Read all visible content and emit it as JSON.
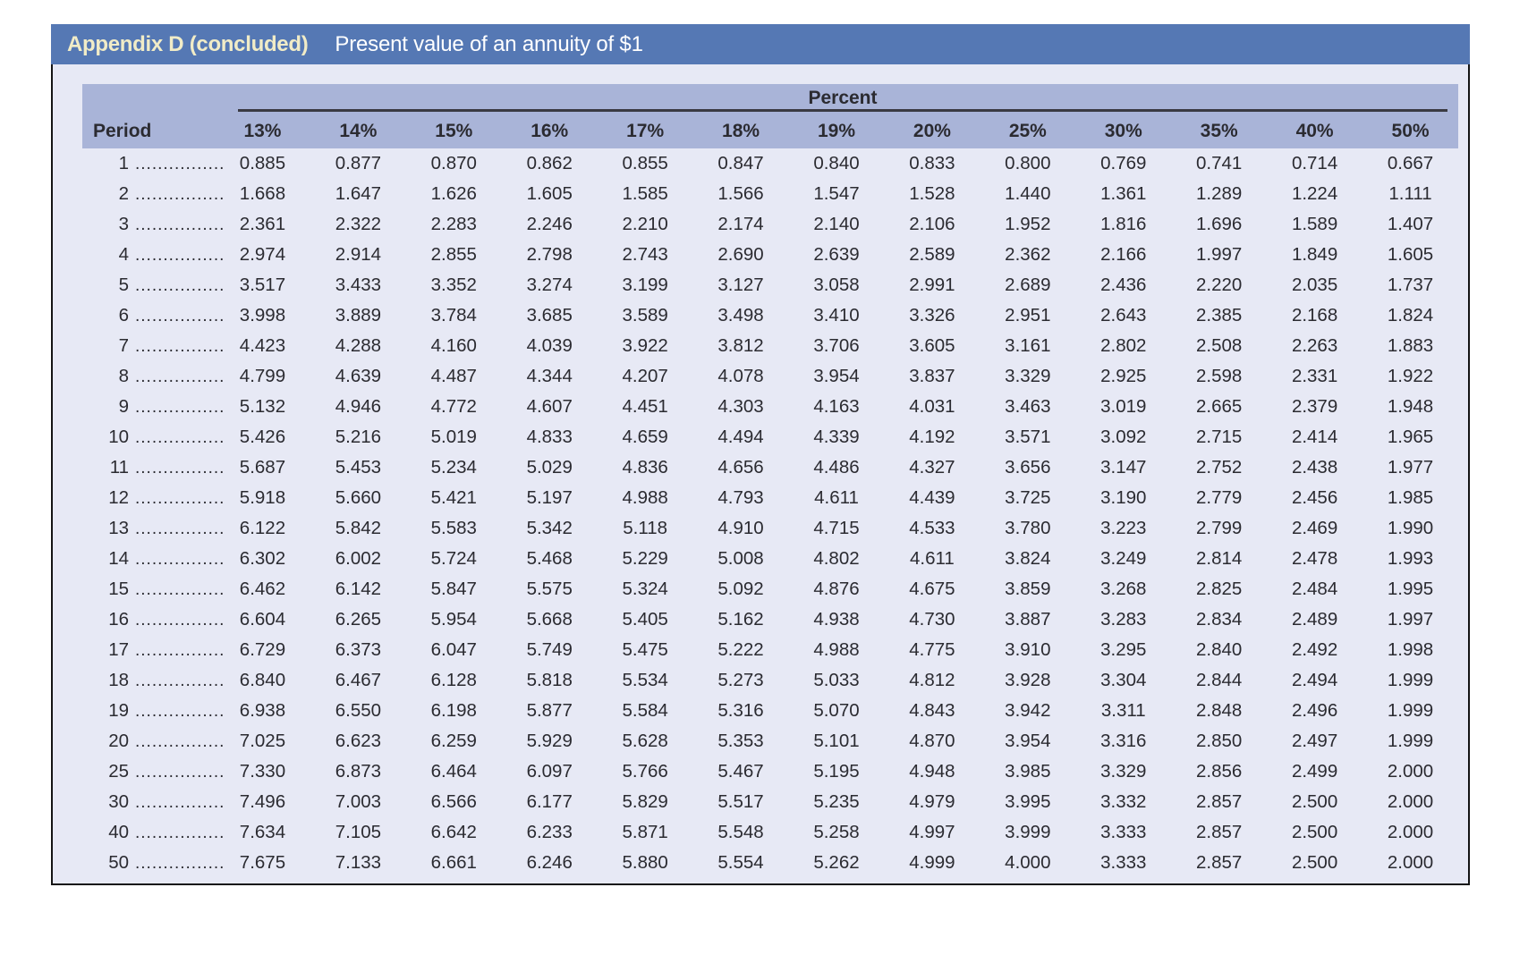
{
  "header": {
    "title": "Appendix D (concluded)",
    "subtitle": "Present value of an annuity of $1"
  },
  "table": {
    "group_header": "Percent",
    "period_header": "Period",
    "leader_dots": "................",
    "columns": [
      "13%",
      "14%",
      "15%",
      "16%",
      "17%",
      "18%",
      "19%",
      "20%",
      "25%",
      "30%",
      "35%",
      "40%",
      "50%"
    ],
    "rows": [
      {
        "period": "1",
        "values": [
          "0.885",
          "0.877",
          "0.870",
          "0.862",
          "0.855",
          "0.847",
          "0.840",
          "0.833",
          "0.800",
          "0.769",
          "0.741",
          "0.714",
          "0.667"
        ]
      },
      {
        "period": "2",
        "values": [
          "1.668",
          "1.647",
          "1.626",
          "1.605",
          "1.585",
          "1.566",
          "1.547",
          "1.528",
          "1.440",
          "1.361",
          "1.289",
          "1.224",
          "1.111"
        ]
      },
      {
        "period": "3",
        "values": [
          "2.361",
          "2.322",
          "2.283",
          "2.246",
          "2.210",
          "2.174",
          "2.140",
          "2.106",
          "1.952",
          "1.816",
          "1.696",
          "1.589",
          "1.407"
        ]
      },
      {
        "period": "4",
        "values": [
          "2.974",
          "2.914",
          "2.855",
          "2.798",
          "2.743",
          "2.690",
          "2.639",
          "2.589",
          "2.362",
          "2.166",
          "1.997",
          "1.849",
          "1.605"
        ]
      },
      {
        "period": "5",
        "values": [
          "3.517",
          "3.433",
          "3.352",
          "3.274",
          "3.199",
          "3.127",
          "3.058",
          "2.991",
          "2.689",
          "2.436",
          "2.220",
          "2.035",
          "1.737"
        ]
      },
      {
        "period": "6",
        "values": [
          "3.998",
          "3.889",
          "3.784",
          "3.685",
          "3.589",
          "3.498",
          "3.410",
          "3.326",
          "2.951",
          "2.643",
          "2.385",
          "2.168",
          "1.824"
        ]
      },
      {
        "period": "7",
        "values": [
          "4.423",
          "4.288",
          "4.160",
          "4.039",
          "3.922",
          "3.812",
          "3.706",
          "3.605",
          "3.161",
          "2.802",
          "2.508",
          "2.263",
          "1.883"
        ]
      },
      {
        "period": "8",
        "values": [
          "4.799",
          "4.639",
          "4.487",
          "4.344",
          "4.207",
          "4.078",
          "3.954",
          "3.837",
          "3.329",
          "2.925",
          "2.598",
          "2.331",
          "1.922"
        ]
      },
      {
        "period": "9",
        "values": [
          "5.132",
          "4.946",
          "4.772",
          "4.607",
          "4.451",
          "4.303",
          "4.163",
          "4.031",
          "3.463",
          "3.019",
          "2.665",
          "2.379",
          "1.948"
        ]
      },
      {
        "period": "10",
        "values": [
          "5.426",
          "5.216",
          "5.019",
          "4.833",
          "4.659",
          "4.494",
          "4.339",
          "4.192",
          "3.571",
          "3.092",
          "2.715",
          "2.414",
          "1.965"
        ]
      },
      {
        "period": "11",
        "values": [
          "5.687",
          "5.453",
          "5.234",
          "5.029",
          "4.836",
          "4.656",
          "4.486",
          "4.327",
          "3.656",
          "3.147",
          "2.752",
          "2.438",
          "1.977"
        ]
      },
      {
        "period": "12",
        "values": [
          "5.918",
          "5.660",
          "5.421",
          "5.197",
          "4.988",
          "4.793",
          "4.611",
          "4.439",
          "3.725",
          "3.190",
          "2.779",
          "2.456",
          "1.985"
        ]
      },
      {
        "period": "13",
        "values": [
          "6.122",
          "5.842",
          "5.583",
          "5.342",
          "5.118",
          "4.910",
          "4.715",
          "4.533",
          "3.780",
          "3.223",
          "2.799",
          "2.469",
          "1.990"
        ]
      },
      {
        "period": "14",
        "values": [
          "6.302",
          "6.002",
          "5.724",
          "5.468",
          "5.229",
          "5.008",
          "4.802",
          "4.611",
          "3.824",
          "3.249",
          "2.814",
          "2.478",
          "1.993"
        ]
      },
      {
        "period": "15",
        "values": [
          "6.462",
          "6.142",
          "5.847",
          "5.575",
          "5.324",
          "5.092",
          "4.876",
          "4.675",
          "3.859",
          "3.268",
          "2.825",
          "2.484",
          "1.995"
        ]
      },
      {
        "period": "16",
        "values": [
          "6.604",
          "6.265",
          "5.954",
          "5.668",
          "5.405",
          "5.162",
          "4.938",
          "4.730",
          "3.887",
          "3.283",
          "2.834",
          "2.489",
          "1.997"
        ]
      },
      {
        "period": "17",
        "values": [
          "6.729",
          "6.373",
          "6.047",
          "5.749",
          "5.475",
          "5.222",
          "4.988",
          "4.775",
          "3.910",
          "3.295",
          "2.840",
          "2.492",
          "1.998"
        ]
      },
      {
        "period": "18",
        "values": [
          "6.840",
          "6.467",
          "6.128",
          "5.818",
          "5.534",
          "5.273",
          "5.033",
          "4.812",
          "3.928",
          "3.304",
          "2.844",
          "2.494",
          "1.999"
        ]
      },
      {
        "period": "19",
        "values": [
          "6.938",
          "6.550",
          "6.198",
          "5.877",
          "5.584",
          "5.316",
          "5.070",
          "4.843",
          "3.942",
          "3.311",
          "2.848",
          "2.496",
          "1.999"
        ]
      },
      {
        "period": "20",
        "values": [
          "7.025",
          "6.623",
          "6.259",
          "5.929",
          "5.628",
          "5.353",
          "5.101",
          "4.870",
          "3.954",
          "3.316",
          "2.850",
          "2.497",
          "1.999"
        ]
      },
      {
        "period": "25",
        "values": [
          "7.330",
          "6.873",
          "6.464",
          "6.097",
          "5.766",
          "5.467",
          "5.195",
          "4.948",
          "3.985",
          "3.329",
          "2.856",
          "2.499",
          "2.000"
        ]
      },
      {
        "period": "30",
        "values": [
          "7.496",
          "7.003",
          "6.566",
          "6.177",
          "5.829",
          "5.517",
          "5.235",
          "4.979",
          "3.995",
          "3.332",
          "2.857",
          "2.500",
          "2.000"
        ]
      },
      {
        "period": "40",
        "values": [
          "7.634",
          "7.105",
          "6.642",
          "6.233",
          "5.871",
          "5.548",
          "5.258",
          "4.997",
          "3.999",
          "3.333",
          "2.857",
          "2.500",
          "2.000"
        ]
      },
      {
        "period": "50",
        "values": [
          "7.675",
          "7.133",
          "6.661",
          "6.246",
          "5.880",
          "5.554",
          "5.262",
          "4.999",
          "4.000",
          "3.333",
          "2.857",
          "2.500",
          "2.000"
        ]
      }
    ]
  },
  "colors": {
    "title_bar": "#5578b4",
    "title_text": "#f1ecc7",
    "subtitle_text": "#ffffff",
    "table_header": "#a9b4d8",
    "panel_background": "#e7e9f5",
    "text": "#2b2b31",
    "border": "#141414"
  }
}
